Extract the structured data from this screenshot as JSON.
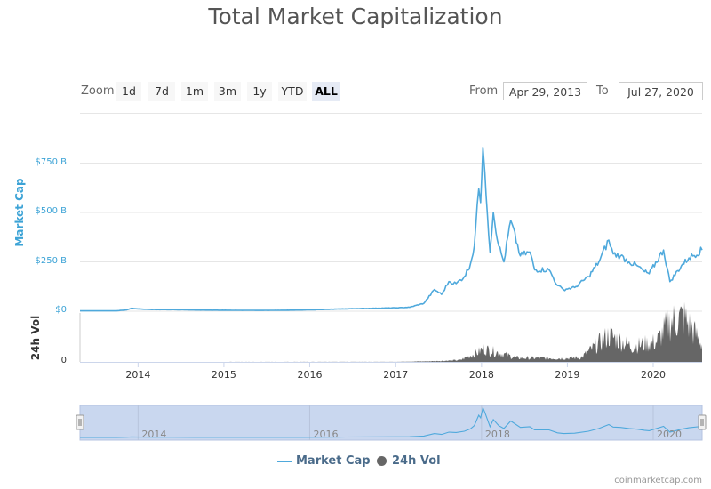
{
  "title": "Total Market Capitalization",
  "zoom": {
    "label": "Zoom",
    "buttons": [
      "1d",
      "7d",
      "1m",
      "3m",
      "1y",
      "YTD",
      "ALL"
    ],
    "active": "ALL"
  },
  "range": {
    "from_label": "From",
    "from_value": "Apr 29, 2013",
    "to_label": "To",
    "to_value": "Jul 27, 2020"
  },
  "legend": {
    "market_cap": "Market Cap",
    "volume": "24h Vol"
  },
  "credits": "coinmarketcap.com",
  "colors": {
    "market_cap": "#4fa9dc",
    "volume": "#666666",
    "navigator_fill": "#c9d7ef"
  },
  "chart_data": {
    "type": "line",
    "title": "Total Market Capitalization",
    "x_type": "date",
    "x_range": [
      "2013-04-29",
      "2020-07-27"
    ],
    "x_ticks": [
      "2014",
      "2015",
      "2016",
      "2017",
      "2018",
      "2019",
      "2020"
    ],
    "navigator_ticks": [
      "2014",
      "2016",
      "2018",
      "2020"
    ],
    "market_cap_axis": {
      "label": "Market Cap",
      "ticks": [
        "$0",
        "$250 B",
        "$500 B",
        "$750 B"
      ],
      "range": [
        0,
        1000
      ]
    },
    "volume_axis": {
      "label": "24h Vol",
      "ticks": [
        "0"
      ]
    },
    "series": [
      {
        "name": "Market Cap",
        "unit": "billion USD",
        "points": [
          [
            "2013-04-29",
            1.6
          ],
          [
            "2013-10-01",
            2
          ],
          [
            "2013-11-15",
            7
          ],
          [
            "2013-12-04",
            15
          ],
          [
            "2014-01-15",
            11
          ],
          [
            "2014-03-01",
            8
          ],
          [
            "2014-06-01",
            8
          ],
          [
            "2014-09-01",
            6
          ],
          [
            "2015-01-01",
            5
          ],
          [
            "2015-06-01",
            4
          ],
          [
            "2015-12-01",
            6
          ],
          [
            "2016-06-01",
            12
          ],
          [
            "2016-12-31",
            17
          ],
          [
            "2017-03-01",
            20
          ],
          [
            "2017-05-01",
            40
          ],
          [
            "2017-06-15",
            110
          ],
          [
            "2017-07-15",
            85
          ],
          [
            "2017-08-15",
            150
          ],
          [
            "2017-09-15",
            140
          ],
          [
            "2017-10-20",
            175
          ],
          [
            "2017-11-15",
            240
          ],
          [
            "2017-12-01",
            330
          ],
          [
            "2017-12-20",
            620
          ],
          [
            "2017-12-28",
            550
          ],
          [
            "2018-01-07",
            830
          ],
          [
            "2018-01-15",
            700
          ],
          [
            "2018-02-06",
            300
          ],
          [
            "2018-02-20",
            500
          ],
          [
            "2018-03-15",
            330
          ],
          [
            "2018-04-06",
            250
          ],
          [
            "2018-05-05",
            460
          ],
          [
            "2018-06-15",
            280
          ],
          [
            "2018-07-25",
            300
          ],
          [
            "2018-08-15",
            210
          ],
          [
            "2018-10-15",
            210
          ],
          [
            "2018-11-20",
            130
          ],
          [
            "2018-12-15",
            110
          ],
          [
            "2019-02-01",
            120
          ],
          [
            "2019-04-01",
            175
          ],
          [
            "2019-05-15",
            250
          ],
          [
            "2019-06-26",
            360
          ],
          [
            "2019-07-15",
            290
          ],
          [
            "2019-08-15",
            280
          ],
          [
            "2019-09-20",
            250
          ],
          [
            "2019-10-25",
            230
          ],
          [
            "2019-11-25",
            200
          ],
          [
            "2019-12-15",
            190
          ],
          [
            "2020-02-14",
            310
          ],
          [
            "2020-03-12",
            150
          ],
          [
            "2020-04-30",
            230
          ],
          [
            "2020-06-01",
            270
          ],
          [
            "2020-07-27",
            310
          ]
        ]
      },
      {
        "name": "24h Vol",
        "unit": "billion USD",
        "shape": "area",
        "points": [
          [
            "2013-04-29",
            0
          ],
          [
            "2016-12-31",
            0.3
          ],
          [
            "2017-06-01",
            3
          ],
          [
            "2017-10-01",
            8
          ],
          [
            "2017-12-20",
            45
          ],
          [
            "2018-01-07",
            60
          ],
          [
            "2018-06-01",
            18
          ],
          [
            "2018-12-15",
            16
          ],
          [
            "2019-03-01",
            20
          ],
          [
            "2019-06-26",
            120
          ],
          [
            "2019-10-01",
            70
          ],
          [
            "2020-01-15",
            90
          ],
          [
            "2020-03-12",
            180
          ],
          [
            "2020-05-10",
            200
          ],
          [
            "2020-07-27",
            80
          ]
        ]
      }
    ]
  }
}
